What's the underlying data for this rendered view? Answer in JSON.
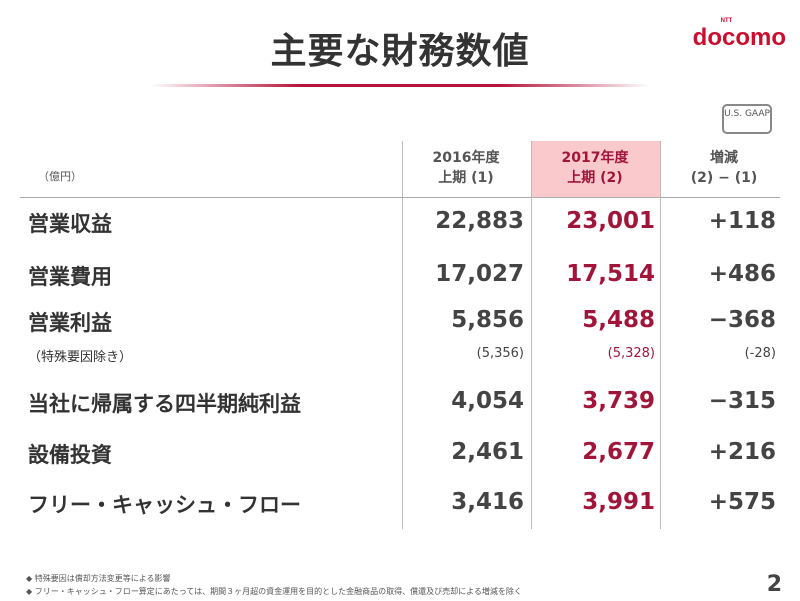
{
  "title": "主要な財務数値",
  "logo": {
    "text": "docomo",
    "sup": "NTT"
  },
  "badge": "U.S. GAAP",
  "unit": "（億円）",
  "columns": [
    {
      "line1": "2016年度",
      "line2": "上期 (1)"
    },
    {
      "line1": "2017年度",
      "line2": "上期 (2)"
    },
    {
      "line1": "増減",
      "line2": "(2) − (1)"
    }
  ],
  "rows": [
    {
      "label": "営業収益",
      "v1": "22,883",
      "v2": "23,001",
      "diff": "+118"
    },
    {
      "label": "営業費用",
      "v1": "17,027",
      "v2": "17,514",
      "diff": "+486"
    },
    {
      "label": "営業利益",
      "v1": "5,856",
      "v2": "5,488",
      "diff": "−368"
    },
    {
      "label": "（特殊要因除き）",
      "v1": "(5,356)",
      "v2": "(5,328)",
      "diff": "(-28)"
    },
    {
      "label": "当社に帰属する四半期純利益",
      "v1": "4,054",
      "v2": "3,739",
      "diff": "−315"
    },
    {
      "label": "設備投資",
      "v1": "2,461",
      "v2": "2,677",
      "diff": "+216"
    },
    {
      "label": "フリー・キャッシュ・フロー",
      "v1": "3,416",
      "v2": "3,991",
      "diff": "+575"
    }
  ],
  "notes": [
    "◆ 特殊要因は償却方法変更等による影響",
    "◆ フリー・キャッシュ・フロー算定にあたっては、期間３ヶ月超の資金運用を目的とした金融商品の取得、償還及び売却による増減を除く"
  ],
  "page": "2"
}
